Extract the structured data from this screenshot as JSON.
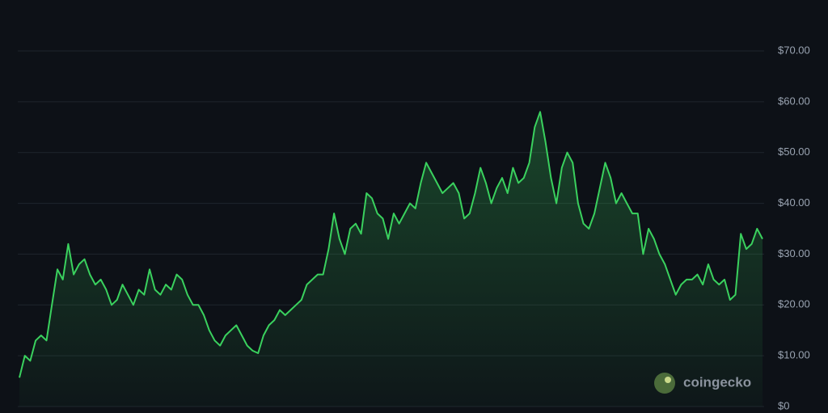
{
  "chart_data": {
    "type": "line",
    "values": [
      5.7,
      10,
      9,
      13,
      14,
      13,
      20,
      27,
      25,
      32,
      26,
      28,
      29,
      26,
      24,
      25,
      23,
      20,
      21,
      24,
      22,
      20,
      23,
      22,
      27,
      23,
      22,
      24,
      23,
      26,
      25,
      22,
      20,
      20,
      18,
      15,
      13,
      12,
      14,
      15,
      16,
      14,
      12,
      11,
      10.5,
      14,
      16,
      17,
      19,
      18,
      19,
      20,
      21,
      24,
      25,
      26,
      26,
      31,
      38,
      33,
      30,
      35,
      36,
      34,
      42,
      41,
      38,
      37,
      33,
      38,
      36,
      38,
      40,
      39,
      44,
      48,
      46,
      44,
      42,
      43,
      44,
      42,
      37,
      38,
      42,
      47,
      44,
      40,
      43,
      45,
      42,
      47,
      44,
      45,
      48,
      55,
      58,
      52,
      45,
      40,
      47,
      50,
      48,
      40,
      36,
      35,
      38,
      43,
      48,
      45,
      40,
      42,
      40,
      38,
      38,
      30,
      35,
      33,
      30,
      28,
      25,
      22,
      24,
      25,
      25,
      26,
      24,
      28,
      25,
      24,
      25,
      21,
      22,
      34,
      31,
      32,
      35,
      33
    ],
    "color": "#3ad15e",
    "ylim": [
      0,
      70
    ],
    "yticks": [
      {
        "value": 0,
        "label": "$0"
      },
      {
        "value": 10,
        "label": "$10.00"
      },
      {
        "value": 20,
        "label": "$20.00"
      },
      {
        "value": 30,
        "label": "$30.00"
      },
      {
        "value": 40,
        "label": "$40.00"
      },
      {
        "value": 50,
        "label": "$50.00"
      },
      {
        "value": 60,
        "label": "$60.00"
      },
      {
        "value": 70,
        "label": "$70.00"
      }
    ],
    "grid": true,
    "watermark": "coingecko"
  }
}
